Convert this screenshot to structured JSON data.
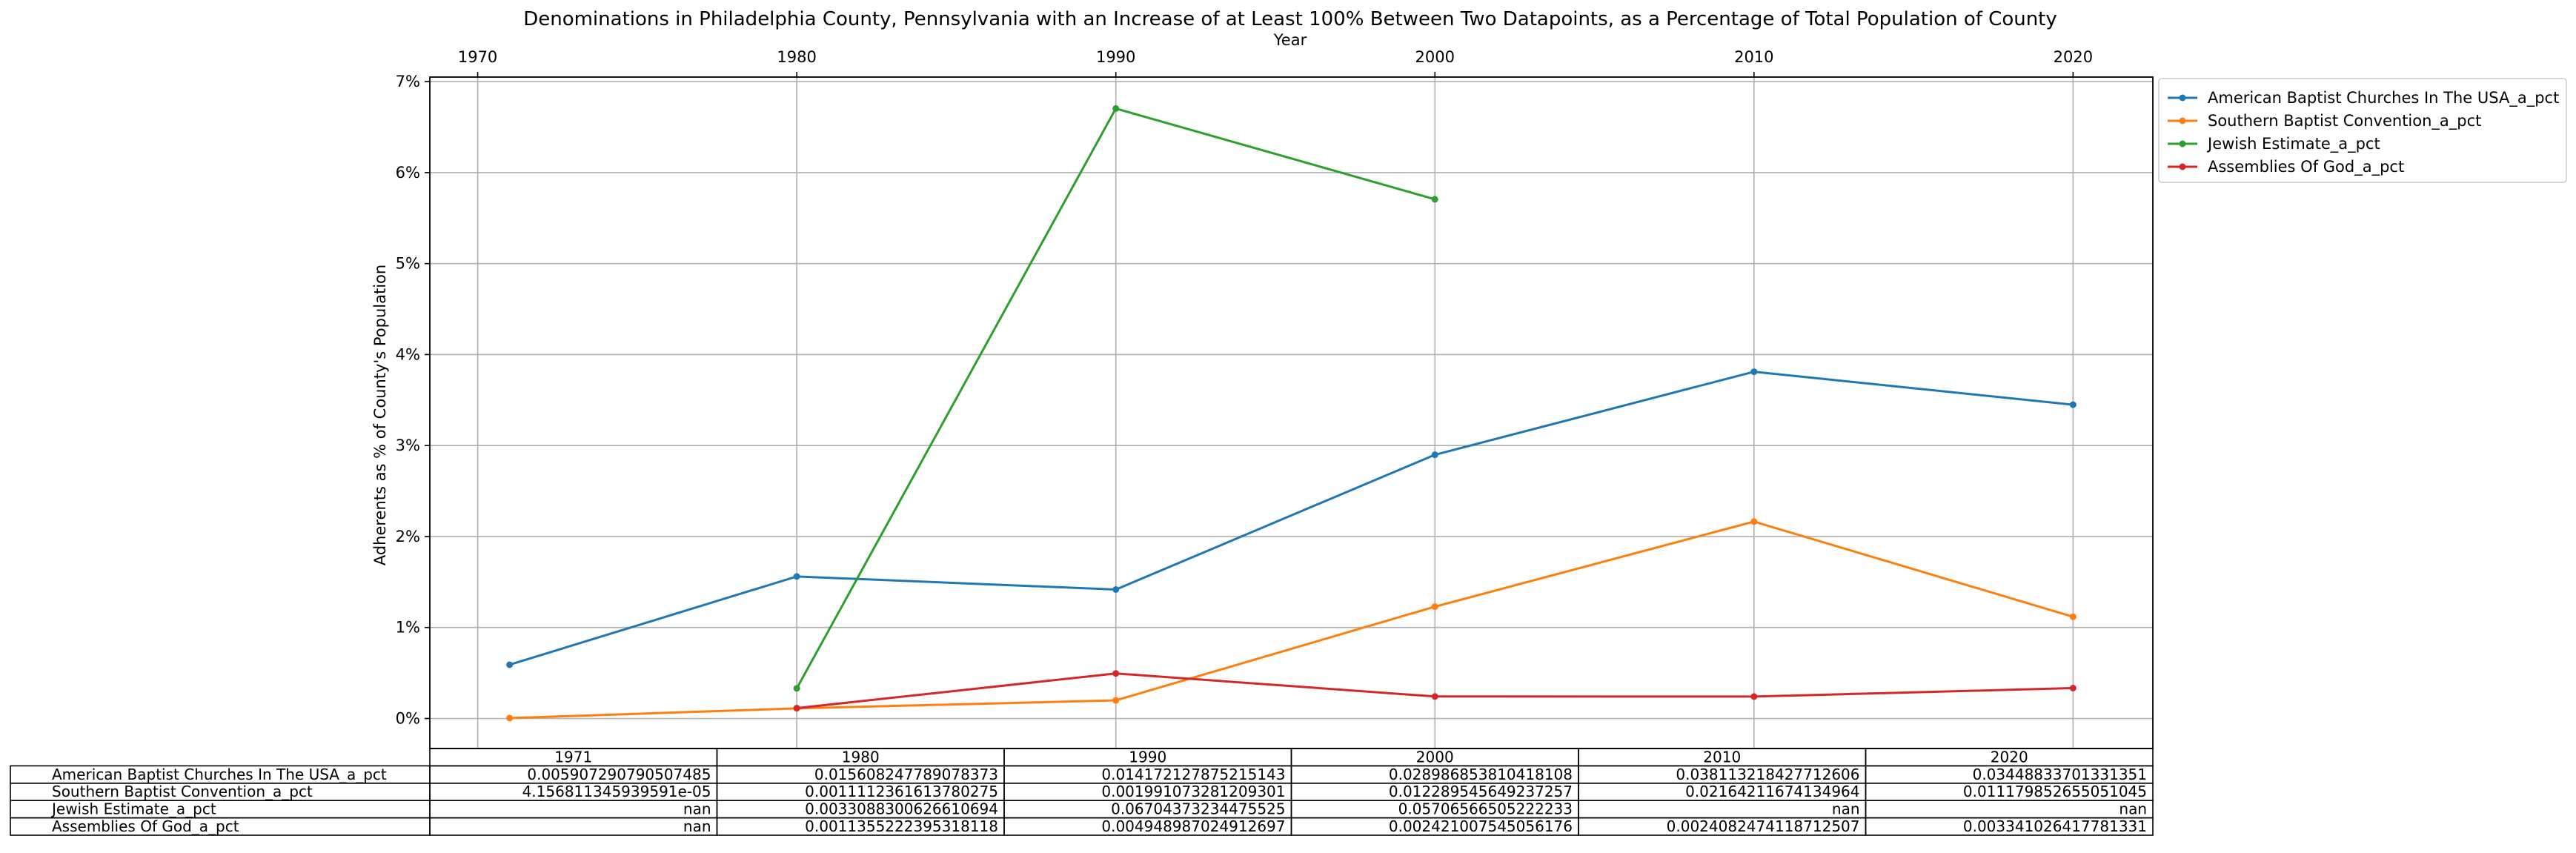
{
  "chart_data": {
    "type": "line",
    "title": "Denominations in Philadelphia County, Pennsylvania with an Increase of at Least 100% Between Two Datapoints, as a Percentage of Total Population of County",
    "xlabel": "Year",
    "ylabel": "Adherents as % of County's Population",
    "x": [
      1971,
      1980,
      1990,
      2000,
      2010,
      2020
    ],
    "x_ticks": [
      "1970",
      "1980",
      "1990",
      "2000",
      "2010",
      "2020"
    ],
    "xlim": [
      1968.5,
      2022.5
    ],
    "y_ticks": [
      "0%",
      "1%",
      "2%",
      "3%",
      "4%",
      "5%",
      "6%",
      "7%"
    ],
    "ylim": [
      -0.0033,
      0.0705
    ],
    "grid": true,
    "legend_position": "outside top-right",
    "series": [
      {
        "name": "American Baptist Churches In The USA_a_pct",
        "color": "#1f77b4",
        "values": [
          0.005907290790507485,
          0.015608247789078373,
          0.014172127875215143,
          0.028986853810418108,
          0.038113218427712606,
          0.03448833701331351
        ]
      },
      {
        "name": "Southern Baptist Convention_a_pct",
        "color": "#ff7f0e",
        "values": [
          4.156811345939591e-05,
          0.0011112361613780275,
          0.001991073281209301,
          0.012289545649237257,
          0.02164211674134964,
          0.011179852655051045
        ]
      },
      {
        "name": "Jewish Estimate_a_pct",
        "color": "#2ca02c",
        "values": [
          null,
          0.0033088300626610695,
          0.06704373234475525,
          0.05706566505222233,
          null,
          null
        ]
      },
      {
        "name": "Assemblies Of God_a_pct",
        "color": "#d62728",
        "values": [
          null,
          0.0011355222395318118,
          0.004948987024912697,
          0.002421007545056176,
          0.0024082474118712507,
          0.003341026417781331
        ]
      }
    ],
    "table": {
      "columns": [
        "1971",
        "1980",
        "1990",
        "2000",
        "2010",
        "2020"
      ],
      "rows": [
        {
          "label": "American Baptist Churches In The USA_a_pct",
          "cells": [
            "0.005907290790507485",
            "0.015608247789078373",
            "0.014172127875215143",
            "0.028986853810418108",
            "0.038113218427712606",
            "0.03448833701331351"
          ]
        },
        {
          "label": "Southern Baptist Convention_a_pct",
          "cells": [
            "4.156811345939591e-05",
            "0.0011112361613780275",
            "0.001991073281209301",
            "0.012289545649237257",
            "0.02164211674134964",
            "0.011179852655051045"
          ]
        },
        {
          "label": "Jewish Estimate_a_pct",
          "cells": [
            "nan",
            "0.0033088300626610694",
            "0.06704373234475525",
            "0.05706566505222233",
            "nan",
            "nan"
          ]
        },
        {
          "label": "Assemblies Of God_a_pct",
          "cells": [
            "nan",
            "0.0011355222395318118",
            "0.004948987024912697",
            "0.002421007545056176",
            "0.0024082474118712507",
            "0.003341026417781331"
          ]
        }
      ]
    }
  }
}
